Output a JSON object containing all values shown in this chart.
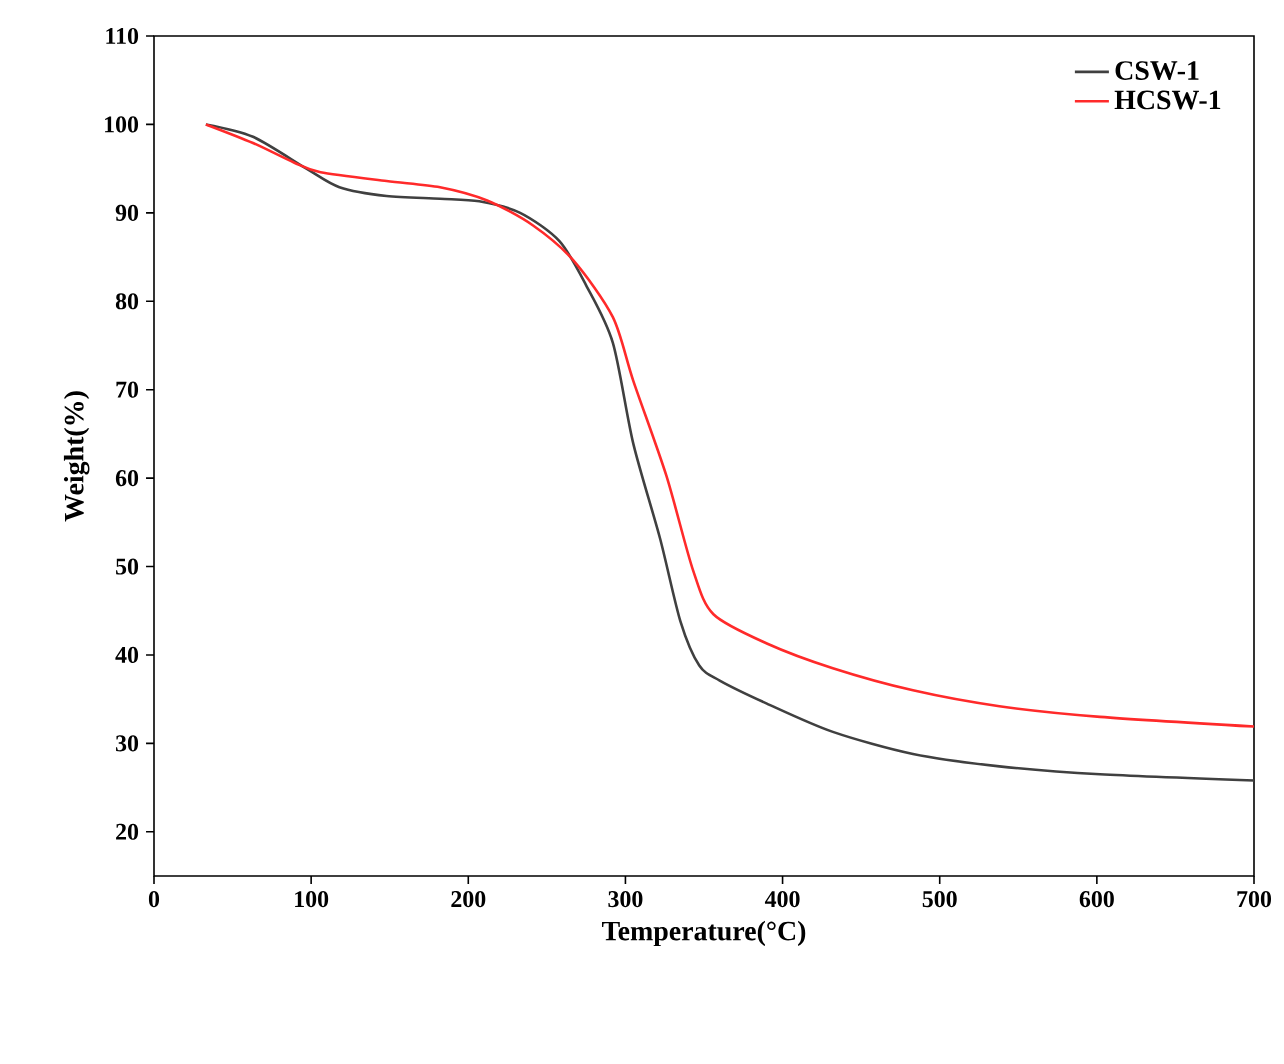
{
  "chart_data": {
    "type": "line",
    "xlabel": "Temperature(°C)",
    "ylabel": "Weight(%)",
    "xlim": [
      0,
      700
    ],
    "ylim": [
      15,
      110
    ],
    "xticks": [
      0,
      100,
      200,
      300,
      400,
      500,
      600,
      700
    ],
    "yticks": [
      20,
      30,
      40,
      50,
      60,
      70,
      80,
      90,
      100,
      110
    ],
    "legend": "top right",
    "grid": false,
    "line_style": "solid",
    "marker": "none",
    "series": [
      {
        "name": "CSW-1",
        "color": "#404040",
        "x": [
          33,
          63,
          97,
          118,
          148,
          182,
          207,
          233,
          258,
          275,
          292,
          305,
          322,
          335,
          347,
          360,
          390,
          432,
          483,
          538,
          602,
          700
        ],
        "values": [
          100,
          98.6,
          95.0,
          92.9,
          91.9,
          91.6,
          91.3,
          90.0,
          86.8,
          81.8,
          75.3,
          63.9,
          53.2,
          43.8,
          38.8,
          37.1,
          34.5,
          31.3,
          28.8,
          27.4,
          26.5,
          25.8
        ]
      },
      {
        "name": "HCSW-1",
        "color": "#ff2a2a",
        "x": [
          33,
          63,
          89,
          106,
          148,
          182,
          212,
          241,
          267,
          292,
          305,
          326,
          343,
          356,
          390,
          432,
          483,
          538,
          602,
          700
        ],
        "values": [
          100,
          97.9,
          95.7,
          94.6,
          93.6,
          92.9,
          91.4,
          88.6,
          84.6,
          78.2,
          71.0,
          60.3,
          49.6,
          44.6,
          41.3,
          38.5,
          36.0,
          34.2,
          33.0,
          31.9
        ]
      }
    ]
  }
}
